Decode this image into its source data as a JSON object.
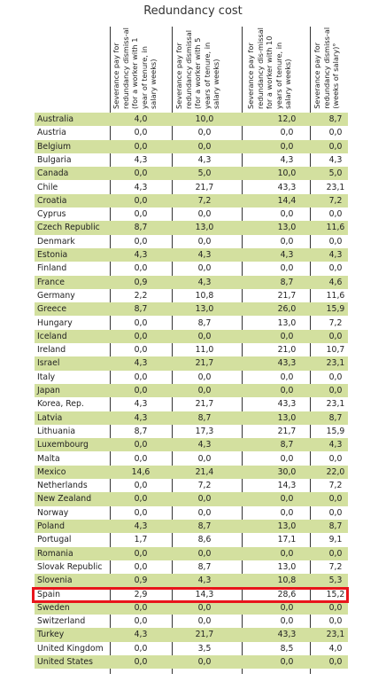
{
  "title": "Redundancy cost",
  "columns": [
    "Severance pay for redundancy dismiss-al (for a worker with 1 year of tenure, in salary weeks)",
    "Severance pay for redundancy dismissal (for a worker with 5 years of tenure, in salary weeks)",
    "Severance pay for redundancy dis-missal for a worker with 10 years of tenure, in salary weeks)",
    "Severance pay for redundancy dismiss-al (weeks of salary)°"
  ],
  "rows": [
    [
      "Australia",
      "4,0",
      "10,0",
      "12,0",
      "8,7"
    ],
    [
      "Austria",
      "0,0",
      "0,0",
      "0,0",
      "0,0"
    ],
    [
      "Belgium",
      "0,0",
      "0,0",
      "0,0",
      "0,0"
    ],
    [
      "Bulgaria",
      "4,3",
      "4,3",
      "4,3",
      "4,3"
    ],
    [
      "Canada",
      "0,0",
      "5,0",
      "10,0",
      "5,0"
    ],
    [
      "Chile",
      "4,3",
      "21,7",
      "43,3",
      "23,1"
    ],
    [
      "Croatia",
      "0,0",
      "7,2",
      "14,4",
      "7,2"
    ],
    [
      "Cyprus",
      "0,0",
      "0,0",
      "0,0",
      "0,0"
    ],
    [
      "Czech Republic",
      "8,7",
      "13,0",
      "13,0",
      "11,6"
    ],
    [
      "Denmark",
      "0,0",
      "0,0",
      "0,0",
      "0,0"
    ],
    [
      "Estonia",
      "4,3",
      "4,3",
      "4,3",
      "4,3"
    ],
    [
      "Finland",
      "0,0",
      "0,0",
      "0,0",
      "0,0"
    ],
    [
      "France",
      "0,9",
      "4,3",
      "8,7",
      "4,6"
    ],
    [
      "Germany",
      "2,2",
      "10,8",
      "21,7",
      "11,6"
    ],
    [
      "Greece",
      "8,7",
      "13,0",
      "26,0",
      "15,9"
    ],
    [
      "Hungary",
      "0,0",
      "8,7",
      "13,0",
      "7,2"
    ],
    [
      "Iceland",
      "0,0",
      "0,0",
      "0,0",
      "0,0"
    ],
    [
      "Ireland",
      "0,0",
      "11,0",
      "21,0",
      "10,7"
    ],
    [
      "Israel",
      "4,3",
      "21,7",
      "43,3",
      "23,1"
    ],
    [
      "Italy",
      "0,0",
      "0,0",
      "0,0",
      "0,0"
    ],
    [
      "Japan",
      "0,0",
      "0,0",
      "0,0",
      "0,0"
    ],
    [
      "Korea, Rep.",
      "4,3",
      "21,7",
      "43,3",
      "23,1"
    ],
    [
      "Latvia",
      "4,3",
      "8,7",
      "13,0",
      "8,7"
    ],
    [
      "Lithuania",
      "8,7",
      "17,3",
      "21,7",
      "15,9"
    ],
    [
      "Luxembourg",
      "0,0",
      "4,3",
      "8,7",
      "4,3"
    ],
    [
      "Malta",
      "0,0",
      "0,0",
      "0,0",
      "0,0"
    ],
    [
      "Mexico",
      "14,6",
      "21,4",
      "30,0",
      "22,0"
    ],
    [
      "Netherlands",
      "0,0",
      "7,2",
      "14,3",
      "7,2"
    ],
    [
      "New Zealand",
      "0,0",
      "0,0",
      "0,0",
      "0,0"
    ],
    [
      "Norway",
      "0,0",
      "0,0",
      "0,0",
      "0,0"
    ],
    [
      "Poland",
      "4,3",
      "8,7",
      "13,0",
      "8,7"
    ],
    [
      "Portugal",
      "1,7",
      "8,6",
      "17,1",
      "9,1"
    ],
    [
      "Romania",
      "0,0",
      "0,0",
      "0,0",
      "0,0"
    ],
    [
      "Slovak Republic",
      "0,0",
      "8,7",
      "13,0",
      "7,2"
    ],
    [
      "Slovenia",
      "0,9",
      "4,3",
      "10,8",
      "5,3"
    ],
    [
      "Spain",
      "2,9",
      "14,3",
      "28,6",
      "15,2"
    ],
    [
      "Sweden",
      "0,0",
      "0,0",
      "0,0",
      "0,0"
    ],
    [
      "Switzerland",
      "0,0",
      "0,0",
      "0,0",
      "0,0"
    ],
    [
      "Turkey",
      "4,3",
      "21,7",
      "43,3",
      "23,1"
    ],
    [
      "United Kingdom",
      "0,0",
      "3,5",
      "8,5",
      "4,0"
    ],
    [
      "United States",
      "0,0",
      "0,0",
      "0,0",
      "0,0"
    ]
  ],
  "colors": {
    "stripe": "#d3e09f",
    "highlight": "#e8151b"
  }
}
